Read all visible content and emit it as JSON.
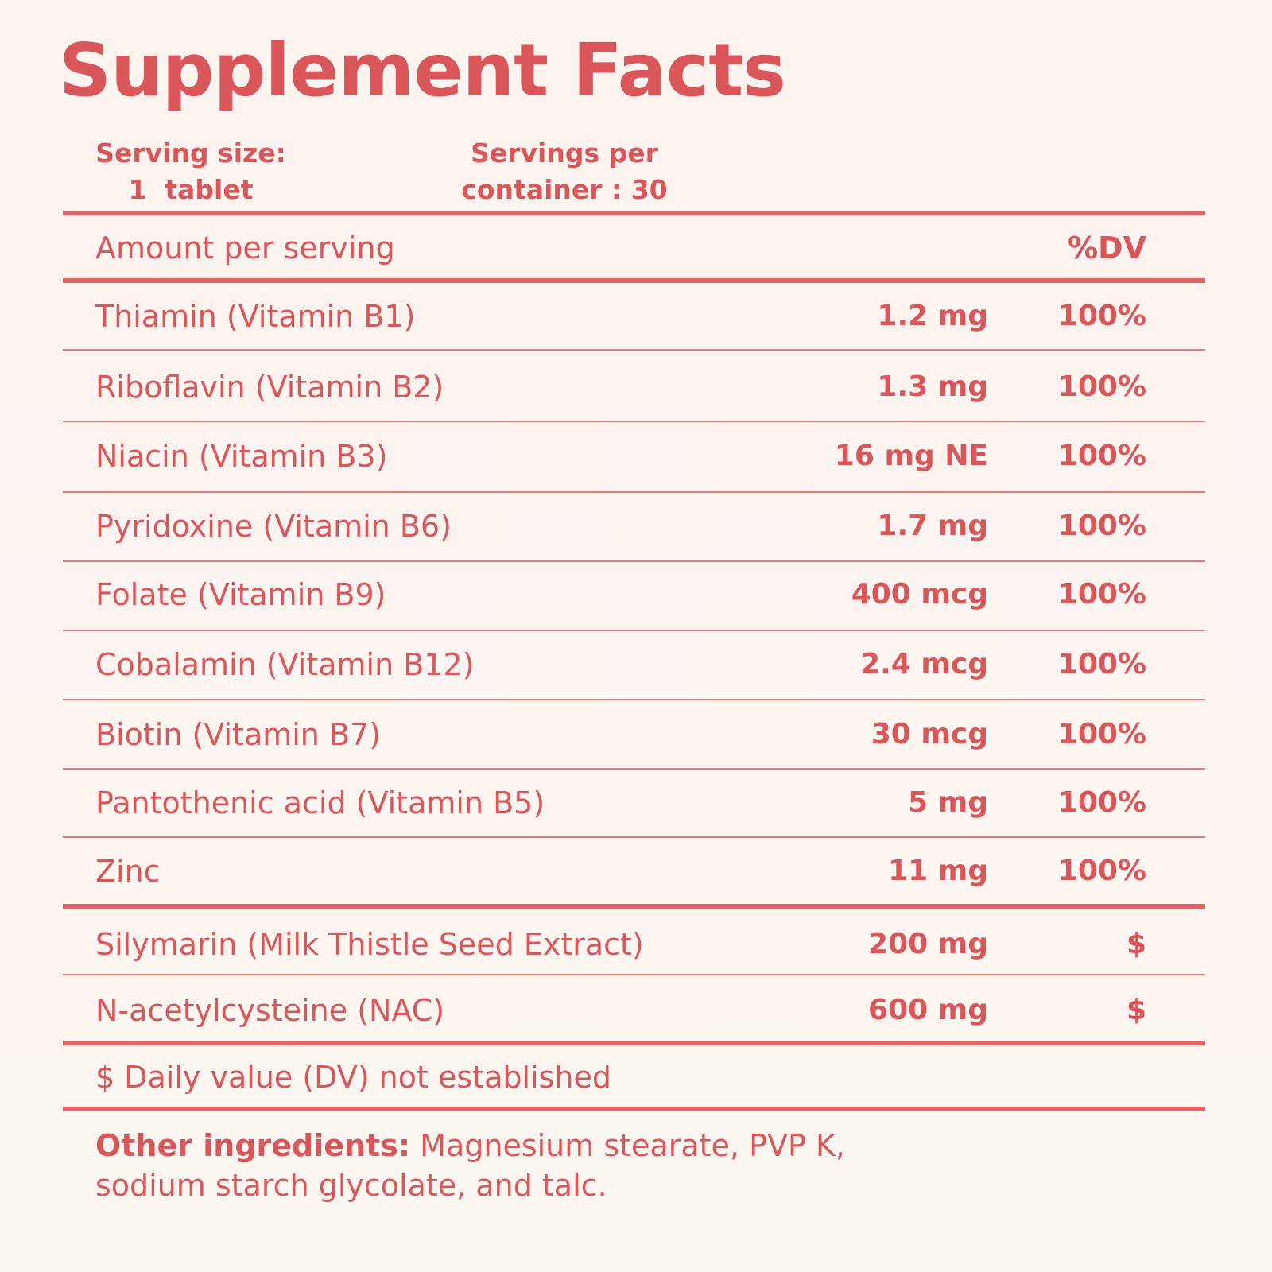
{
  "title": "Supplement Facts",
  "serving": {
    "size_label": "Serving size:",
    "size_value": "1  tablet",
    "per_container_label": "Servings per",
    "per_container_value": "container : 30"
  },
  "header": {
    "amount_label": "Amount per serving",
    "dv_label": "%DV"
  },
  "nutrients": [
    {
      "name": "Thiamin (Vitamin B1)",
      "amount": "1.2 mg",
      "dv": "100%"
    },
    {
      "name": "Riboflavin (Vitamin B2)",
      "amount": "1.3 mg",
      "dv": "100%"
    },
    {
      "name": "Niacin (Vitamin B3)",
      "amount": "16 mg NE",
      "dv": "100%"
    },
    {
      "name": "Pyridoxine (Vitamin B6)",
      "amount": "1.7 mg",
      "dv": "100%"
    },
    {
      "name": "Folate (Vitamin B9)",
      "amount": "400 mcg",
      "dv": "100%"
    },
    {
      "name": "Cobalamin (Vitamin B12)",
      "amount": "2.4 mcg",
      "dv": "100%"
    },
    {
      "name": "Biotin (Vitamin B7)",
      "amount": "30 mcg",
      "dv": "100%"
    },
    {
      "name": "Pantothenic acid (Vitamin B5)",
      "amount": "5 mg",
      "dv": "100%"
    },
    {
      "name": "Zinc",
      "amount": "11 mg",
      "dv": "100%"
    }
  ],
  "other_actives": [
    {
      "name": "Silymarin (Milk Thistle Seed Extract)",
      "amount": "200 mg",
      "dv": "$"
    },
    {
      "name": "N-acetylcysteine (NAC)",
      "amount": "600 mg",
      "dv": "$"
    }
  ],
  "footnote": "$ Daily value (DV) not established",
  "other_ingredients": {
    "label": "Other ingredients:",
    "text": " Magnesium stearate, PVP K, sodium starch glycolate, and talc."
  },
  "colors": {
    "accent": "#d9575a",
    "rule": "#e66264",
    "background": "#fdf3ef"
  }
}
